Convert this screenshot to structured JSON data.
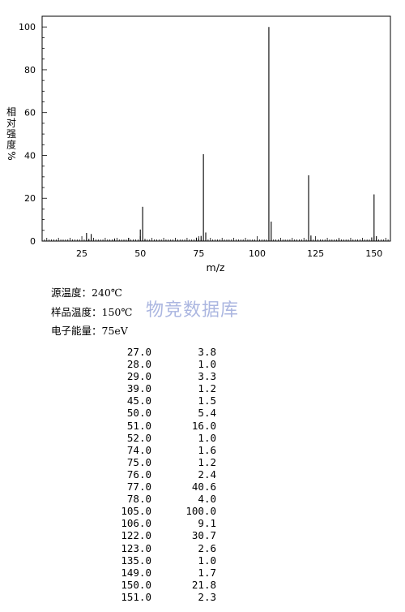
{
  "chart_data": {
    "type": "bar",
    "title": "",
    "xlabel": "m/z",
    "ylabel": "相对强度%",
    "ylabel_chars": [
      "相",
      "对",
      "强",
      "度",
      "%"
    ],
    "xlim": [
      8,
      157
    ],
    "ylim": [
      0,
      105
    ],
    "xticks": [
      25,
      50,
      75,
      100,
      125,
      150
    ],
    "yticks": [
      0,
      20,
      40,
      60,
      80,
      100
    ],
    "grid": false,
    "x": [
      27,
      28,
      29,
      39,
      45,
      50,
      51,
      52,
      74,
      75,
      76,
      77,
      78,
      105,
      106,
      122,
      123,
      135,
      149,
      150,
      151
    ],
    "values": [
      3.8,
      1.0,
      3.3,
      1.2,
      1.5,
      5.4,
      16.0,
      1.0,
      1.6,
      1.2,
      2.4,
      40.6,
      4.0,
      100.0,
      9.1,
      30.7,
      2.6,
      1.0,
      1.7,
      21.8,
      2.3
    ]
  },
  "conditions": [
    "源温度：240℃",
    "样品温度：150℃",
    "电子能量：75eV"
  ],
  "watermark": "物竞数据库",
  "peaks": [
    {
      "mz": "27.0",
      "abundance": "3.8"
    },
    {
      "mz": "28.0",
      "abundance": "1.0"
    },
    {
      "mz": "29.0",
      "abundance": "3.3"
    },
    {
      "mz": "39.0",
      "abundance": "1.2"
    },
    {
      "mz": "45.0",
      "abundance": "1.5"
    },
    {
      "mz": "50.0",
      "abundance": "5.4"
    },
    {
      "mz": "51.0",
      "abundance": "16.0"
    },
    {
      "mz": "52.0",
      "abundance": "1.0"
    },
    {
      "mz": "74.0",
      "abundance": "1.6"
    },
    {
      "mz": "75.0",
      "abundance": "1.2"
    },
    {
      "mz": "76.0",
      "abundance": "2.4"
    },
    {
      "mz": "77.0",
      "abundance": "40.6"
    },
    {
      "mz": "78.0",
      "abundance": "4.0"
    },
    {
      "mz": "105.0",
      "abundance": "100.0"
    },
    {
      "mz": "106.0",
      "abundance": "9.1"
    },
    {
      "mz": "122.0",
      "abundance": "30.7"
    },
    {
      "mz": "123.0",
      "abundance": "2.6"
    },
    {
      "mz": "135.0",
      "abundance": "1.0"
    },
    {
      "mz": "149.0",
      "abundance": "1.7"
    },
    {
      "mz": "150.0",
      "abundance": "21.8"
    },
    {
      "mz": "151.0",
      "abundance": "2.3"
    }
  ]
}
